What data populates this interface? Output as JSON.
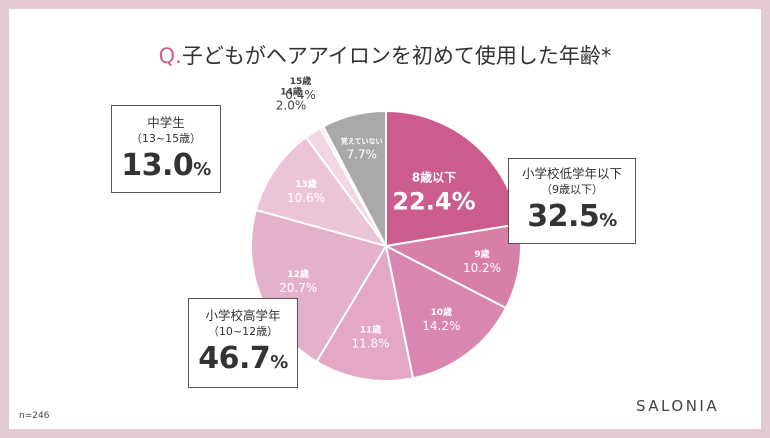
{
  "title": {
    "prefix": "Q.",
    "text": "子どもがヘアアイロンを初めて使用した年齢*"
  },
  "sample_note": "n=246",
  "brand": "SALONIA",
  "colors": {
    "accent": "#d45c88",
    "frame": "#e4cbd3"
  },
  "chart_data": {
    "type": "pie",
    "title": "子どもがヘアアイロンを初めて使用した年齢*",
    "unit": "%",
    "slices": [
      {
        "label": "8歳以下",
        "value": 22.4,
        "color": "#cc5b8e",
        "label_color": "#ffffff"
      },
      {
        "label": "9歳",
        "value": 10.2,
        "color": "#d87fa8",
        "label_color": "#ffffff"
      },
      {
        "label": "10歳",
        "value": 14.2,
        "color": "#d987b0",
        "label_color": "#ffffff"
      },
      {
        "label": "11歳",
        "value": 11.8,
        "color": "#e4a8c6",
        "label_color": "#ffffff"
      },
      {
        "label": "12歳",
        "value": 20.7,
        "color": "#e5b0ca",
        "label_color": "#ffffff"
      },
      {
        "label": "13歳",
        "value": 10.6,
        "color": "#ecc4d8",
        "label_color": "#ffffff"
      },
      {
        "label": "14歳",
        "value": 2.0,
        "color": "#f1d6e3",
        "label_color": "#444444"
      },
      {
        "label": "15歳",
        "value": 0.4,
        "color": "#f5e3ec",
        "label_color": "#444444"
      },
      {
        "label": "覚えていない",
        "value": 7.7,
        "color": "#a9a9a9",
        "label_color": "#ffffff"
      }
    ],
    "groups": [
      {
        "label": "小学校低学年以下",
        "range": "（9歳以下）",
        "value": "32.5"
      },
      {
        "label": "小学校高学年",
        "range": "（10~12歳）",
        "value": "46.7"
      },
      {
        "label": "中学生",
        "range": "（13~15歳）",
        "value": "13.0"
      }
    ]
  }
}
